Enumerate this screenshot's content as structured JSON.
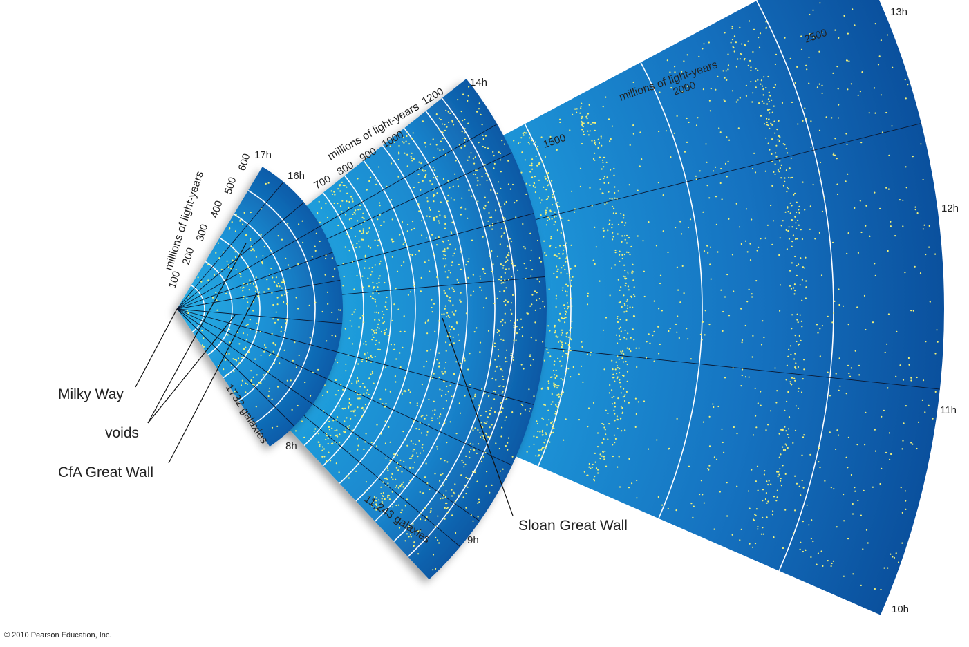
{
  "colors": {
    "wedge_inner": "#1a9ad8",
    "wedge_outer": "#0a4f9c",
    "galaxy": "#f4f27a",
    "ring": "#ffffff",
    "ray": "#0b1830",
    "text": "#222222"
  },
  "small_wedge": {
    "unit_label": "millions of light-years",
    "distance_ticks": [
      "100",
      "200",
      "300",
      "400",
      "500",
      "600"
    ],
    "hour_labels": {
      "top": "17h",
      "sub": "16h",
      "bottom": "8h"
    },
    "count_label": "1732 galaxies"
  },
  "mid_wedge": {
    "unit_label": "millions of light-years",
    "distance_ticks": [
      "700",
      "800",
      "900",
      "1000",
      "1200"
    ],
    "hour_labels": {
      "top": "14h",
      "bottom": "9h"
    },
    "count_label": "11,243 galaxies"
  },
  "large_wedge": {
    "unit_label": "millions of light-years",
    "distance_ticks": [
      "1500",
      "2000",
      "2500"
    ],
    "hour_labels": {
      "top": "13h",
      "upper_mid": "12h",
      "lower_mid": "11h",
      "bottom": "10h"
    }
  },
  "callouts": {
    "milky_way": "Milky Way",
    "voids": "voids",
    "cfa_great_wall": "CfA Great Wall",
    "sloan_great_wall": "Sloan Great Wall"
  },
  "footer": {
    "copyright": "© 2010 Pearson Education, Inc."
  }
}
